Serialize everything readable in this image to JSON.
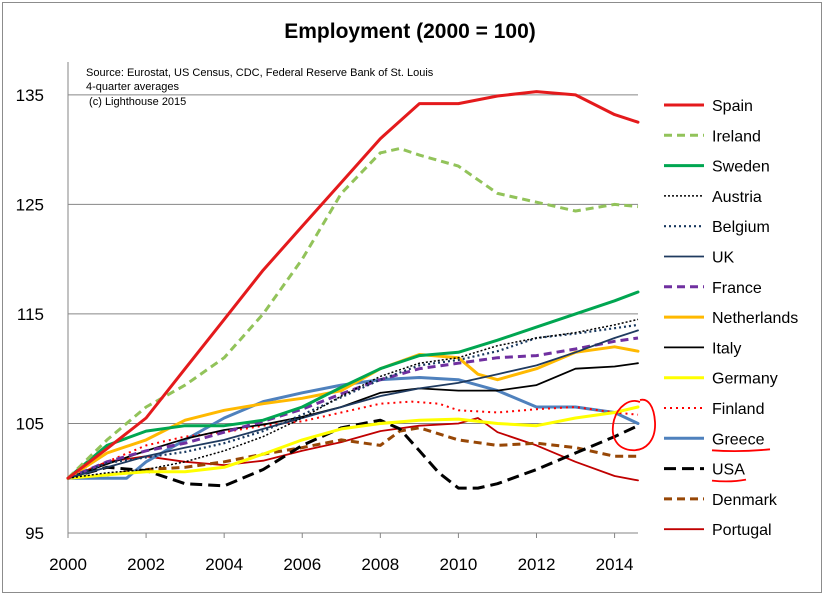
{
  "chart_data": {
    "type": "line",
    "title": "Employment (2000 = 100)",
    "notes": [
      "Source: Eurostat, US Census, CDC, Federal Reserve Bank of St. Louis",
      "4-quarter averages",
      " (c) Lighthouse 2015"
    ],
    "xlabel": "",
    "ylabel": "",
    "xlim": [
      2000,
      2014.6
    ],
    "ylim": [
      95,
      138
    ],
    "x_ticks": [
      2000,
      2002,
      2004,
      2006,
      2008,
      2010,
      2012,
      2014
    ],
    "y_ticks": [
      95,
      105,
      115,
      125,
      135
    ],
    "grid": "horizontal",
    "legend_position": "right",
    "annotations": [
      "red circle around series ends near 2014.5",
      "red underlines under Greece and USA legend labels"
    ],
    "series": [
      {
        "name": "Spain",
        "color": "#e41a1c",
        "dash": "solid",
        "width": 3,
        "points": [
          [
            2000,
            100
          ],
          [
            2001,
            102.7
          ],
          [
            2002,
            105.5
          ],
          [
            2003,
            110
          ],
          [
            2004,
            114.5
          ],
          [
            2005,
            119
          ],
          [
            2006,
            123
          ],
          [
            2007,
            127
          ],
          [
            2008,
            131
          ],
          [
            2009,
            134.2
          ],
          [
            2010,
            134.2
          ],
          [
            2011,
            134.9
          ],
          [
            2012,
            135.3
          ],
          [
            2013,
            135
          ],
          [
            2014,
            133.2
          ],
          [
            2014.6,
            132.5
          ]
        ]
      },
      {
        "name": "Ireland",
        "color": "#92c35a",
        "dash": "8,5",
        "width": 3,
        "points": [
          [
            2000,
            100
          ],
          [
            2001,
            103.5
          ],
          [
            2002,
            106.5
          ],
          [
            2003,
            108.5
          ],
          [
            2004,
            111
          ],
          [
            2005,
            115
          ],
          [
            2006,
            120
          ],
          [
            2007,
            126
          ],
          [
            2008,
            129.7
          ],
          [
            2008.5,
            130.1
          ],
          [
            2009,
            129.5
          ],
          [
            2010,
            128.5
          ],
          [
            2011,
            126
          ],
          [
            2012,
            125.2
          ],
          [
            2013,
            124.4
          ],
          [
            2014,
            125
          ],
          [
            2014.6,
            124.8
          ]
        ]
      },
      {
        "name": "Sweden",
        "color": "#00a651",
        "dash": "solid",
        "width": 3,
        "points": [
          [
            2000,
            100
          ],
          [
            2001,
            103
          ],
          [
            2002,
            104.3
          ],
          [
            2003,
            104.8
          ],
          [
            2004,
            104.8
          ],
          [
            2005,
            105.3
          ],
          [
            2006,
            106.5
          ],
          [
            2007,
            108.3
          ],
          [
            2008,
            110
          ],
          [
            2009,
            111.2
          ],
          [
            2010,
            111.5
          ],
          [
            2011,
            112.6
          ],
          [
            2012,
            113.8
          ],
          [
            2013,
            115
          ],
          [
            2014,
            116.2
          ],
          [
            2014.6,
            117
          ]
        ]
      },
      {
        "name": "Austria",
        "color": "#000000",
        "dash": "2,2",
        "width": 1.5,
        "points": [
          [
            2000,
            100
          ],
          [
            2001,
            100.5
          ],
          [
            2002,
            100.8
          ],
          [
            2003,
            101.5
          ],
          [
            2004,
            102.5
          ],
          [
            2005,
            103.8
          ],
          [
            2006,
            105.5
          ],
          [
            2007,
            107.5
          ],
          [
            2008,
            109.3
          ],
          [
            2009,
            110.5
          ],
          [
            2010,
            111
          ],
          [
            2011,
            112.1
          ],
          [
            2012,
            112.8
          ],
          [
            2013,
            113.3
          ],
          [
            2014,
            114
          ],
          [
            2014.6,
            114.5
          ]
        ]
      },
      {
        "name": "Belgium",
        "color": "#17375e",
        "dash": "2,3",
        "width": 2.2,
        "points": [
          [
            2000,
            100
          ],
          [
            2001,
            101.4
          ],
          [
            2002,
            101.9
          ],
          [
            2003,
            102.4
          ],
          [
            2004,
            103.2
          ],
          [
            2005,
            104.3
          ],
          [
            2006,
            105.8
          ],
          [
            2007,
            107.4
          ],
          [
            2008,
            109
          ],
          [
            2009,
            110.3
          ],
          [
            2010,
            110.8
          ],
          [
            2011,
            111.6
          ],
          [
            2012,
            112.8
          ],
          [
            2013,
            113.2
          ],
          [
            2014,
            113.7
          ],
          [
            2014.6,
            114
          ]
        ]
      },
      {
        "name": "UK",
        "color": "#1f3a5f",
        "dash": "solid",
        "width": 1.8,
        "points": [
          [
            2000,
            100
          ],
          [
            2001,
            101
          ],
          [
            2002,
            102
          ],
          [
            2003,
            102.8
          ],
          [
            2004,
            103.5
          ],
          [
            2005,
            104.5
          ],
          [
            2006,
            105.5
          ],
          [
            2007,
            106.5
          ],
          [
            2008,
            107.5
          ],
          [
            2009,
            108.2
          ],
          [
            2010,
            108.7
          ],
          [
            2011,
            109.5
          ],
          [
            2012,
            110.3
          ],
          [
            2013,
            111.5
          ],
          [
            2014,
            112.8
          ],
          [
            2014.6,
            113.5
          ]
        ]
      },
      {
        "name": "France",
        "color": "#7030a0",
        "dash": "8,5",
        "width": 3,
        "points": [
          [
            2000,
            100
          ],
          [
            2001,
            101.5
          ],
          [
            2002,
            102.5
          ],
          [
            2003,
            103.2
          ],
          [
            2004,
            104.2
          ],
          [
            2005,
            105.2
          ],
          [
            2006,
            106.3
          ],
          [
            2007,
            107.7
          ],
          [
            2008,
            109
          ],
          [
            2009,
            110
          ],
          [
            2010,
            110.5
          ],
          [
            2011,
            111
          ],
          [
            2012,
            111.2
          ],
          [
            2013,
            111.8
          ],
          [
            2014,
            112.5
          ],
          [
            2014.6,
            112.8
          ]
        ]
      },
      {
        "name": "Netherlands",
        "color": "#ffb900",
        "dash": "solid",
        "width": 3,
        "points": [
          [
            2000,
            100
          ],
          [
            2001,
            102.3
          ],
          [
            2002,
            103.5
          ],
          [
            2003,
            105.3
          ],
          [
            2004,
            106.2
          ],
          [
            2005,
            106.8
          ],
          [
            2006,
            107.3
          ],
          [
            2007,
            108
          ],
          [
            2008,
            110
          ],
          [
            2009,
            111.3
          ],
          [
            2010,
            111
          ],
          [
            2010.5,
            109.5
          ],
          [
            2011,
            109
          ],
          [
            2012,
            110
          ],
          [
            2013,
            111.5
          ],
          [
            2014,
            112
          ],
          [
            2014.6,
            111.6
          ]
        ]
      },
      {
        "name": "Italy",
        "color": "#000000",
        "dash": "solid",
        "width": 1.8,
        "points": [
          [
            2000,
            100
          ],
          [
            2001,
            101.3
          ],
          [
            2002,
            102.5
          ],
          [
            2003,
            103.6
          ],
          [
            2004,
            104.4
          ],
          [
            2005,
            104.9
          ],
          [
            2006,
            105.6
          ],
          [
            2007,
            106.5
          ],
          [
            2008,
            107.8
          ],
          [
            2009,
            108.2
          ],
          [
            2010,
            108
          ],
          [
            2011,
            108
          ],
          [
            2012,
            108.5
          ],
          [
            2013,
            110
          ],
          [
            2014,
            110.2
          ],
          [
            2014.6,
            110.5
          ]
        ]
      },
      {
        "name": "Germany",
        "color": "#ffff00",
        "dash": "solid",
        "width": 3,
        "points": [
          [
            2000,
            100
          ],
          [
            2001,
            100.3
          ],
          [
            2002,
            100.6
          ],
          [
            2003,
            100.6
          ],
          [
            2004,
            101
          ],
          [
            2005,
            102.2
          ],
          [
            2006,
            103.5
          ],
          [
            2007,
            104.5
          ],
          [
            2008,
            105
          ],
          [
            2009,
            105.3
          ],
          [
            2010,
            105.4
          ],
          [
            2011,
            105
          ],
          [
            2012,
            104.8
          ],
          [
            2013,
            105.5
          ],
          [
            2014,
            106
          ],
          [
            2014.6,
            106.5
          ]
        ]
      },
      {
        "name": "Finland",
        "color": "#ff0000",
        "dash": "2,4",
        "width": 2,
        "points": [
          [
            2000,
            100
          ],
          [
            2001,
            101.5
          ],
          [
            2002,
            103
          ],
          [
            2003,
            103.8
          ],
          [
            2004,
            104.2
          ],
          [
            2005,
            104.8
          ],
          [
            2006,
            105.2
          ],
          [
            2007,
            106
          ],
          [
            2008,
            106.8
          ],
          [
            2008.8,
            107
          ],
          [
            2009.5,
            106.8
          ],
          [
            2010,
            106.2
          ],
          [
            2011,
            106
          ],
          [
            2012,
            106.3
          ],
          [
            2013,
            106.5
          ],
          [
            2014,
            106
          ],
          [
            2014.6,
            105.8
          ]
        ]
      },
      {
        "name": "Greece",
        "color": "#4f81bd",
        "dash": "solid",
        "width": 3,
        "points": [
          [
            2000,
            100
          ],
          [
            2001,
            100
          ],
          [
            2001.5,
            100
          ],
          [
            2002,
            101.5
          ],
          [
            2003,
            103.5
          ],
          [
            2004,
            105.5
          ],
          [
            2005,
            107
          ],
          [
            2006,
            107.8
          ],
          [
            2007,
            108.5
          ],
          [
            2008,
            109
          ],
          [
            2009,
            109.2
          ],
          [
            2010,
            109
          ],
          [
            2011,
            108
          ],
          [
            2012,
            106.5
          ],
          [
            2013,
            106.5
          ],
          [
            2014,
            106
          ],
          [
            2014.6,
            105
          ]
        ]
      },
      {
        "name": "USA",
        "color": "#000000",
        "dash": "12,6",
        "width": 3,
        "points": [
          [
            2000,
            100
          ],
          [
            2001,
            101
          ],
          [
            2002,
            100.7
          ],
          [
            2003,
            99.5
          ],
          [
            2004,
            99.3
          ],
          [
            2005,
            100.8
          ],
          [
            2006,
            103
          ],
          [
            2007,
            104.6
          ],
          [
            2008,
            105.3
          ],
          [
            2008.5,
            104.5
          ],
          [
            2009,
            102.5
          ],
          [
            2009.5,
            100.5
          ],
          [
            2010,
            99.1
          ],
          [
            2010.5,
            99.1
          ],
          [
            2011,
            99.5
          ],
          [
            2012,
            100.8
          ],
          [
            2013,
            102.3
          ],
          [
            2014,
            103.8
          ],
          [
            2014.6,
            104.8
          ]
        ]
      },
      {
        "name": "Denmark",
        "color": "#974706",
        "dash": "8,5",
        "width": 3,
        "points": [
          [
            2000,
            100
          ],
          [
            2001,
            100.3
          ],
          [
            2002,
            100.8
          ],
          [
            2003,
            101
          ],
          [
            2004,
            101.5
          ],
          [
            2005,
            102.2
          ],
          [
            2006,
            102.8
          ],
          [
            2007,
            103.5
          ],
          [
            2008,
            103
          ],
          [
            2008.5,
            104.3
          ],
          [
            2009,
            104.6
          ],
          [
            2010,
            103.5
          ],
          [
            2011,
            103
          ],
          [
            2012,
            103.2
          ],
          [
            2013,
            102.8
          ],
          [
            2014,
            102
          ],
          [
            2014.6,
            102
          ]
        ]
      },
      {
        "name": "Portugal",
        "color": "#c00000",
        "dash": "solid",
        "width": 1.8,
        "points": [
          [
            2000,
            100
          ],
          [
            2001,
            101.5
          ],
          [
            2002,
            102
          ],
          [
            2003,
            101.5
          ],
          [
            2004,
            101.2
          ],
          [
            2005,
            101.6
          ],
          [
            2006,
            102.5
          ],
          [
            2007,
            103.3
          ],
          [
            2008,
            104.3
          ],
          [
            2009,
            104.8
          ],
          [
            2010,
            105
          ],
          [
            2010.5,
            105.5
          ],
          [
            2011,
            104.2
          ],
          [
            2012,
            103
          ],
          [
            2013,
            101.5
          ],
          [
            2014,
            100.2
          ],
          [
            2014.6,
            99.8
          ]
        ]
      }
    ]
  }
}
